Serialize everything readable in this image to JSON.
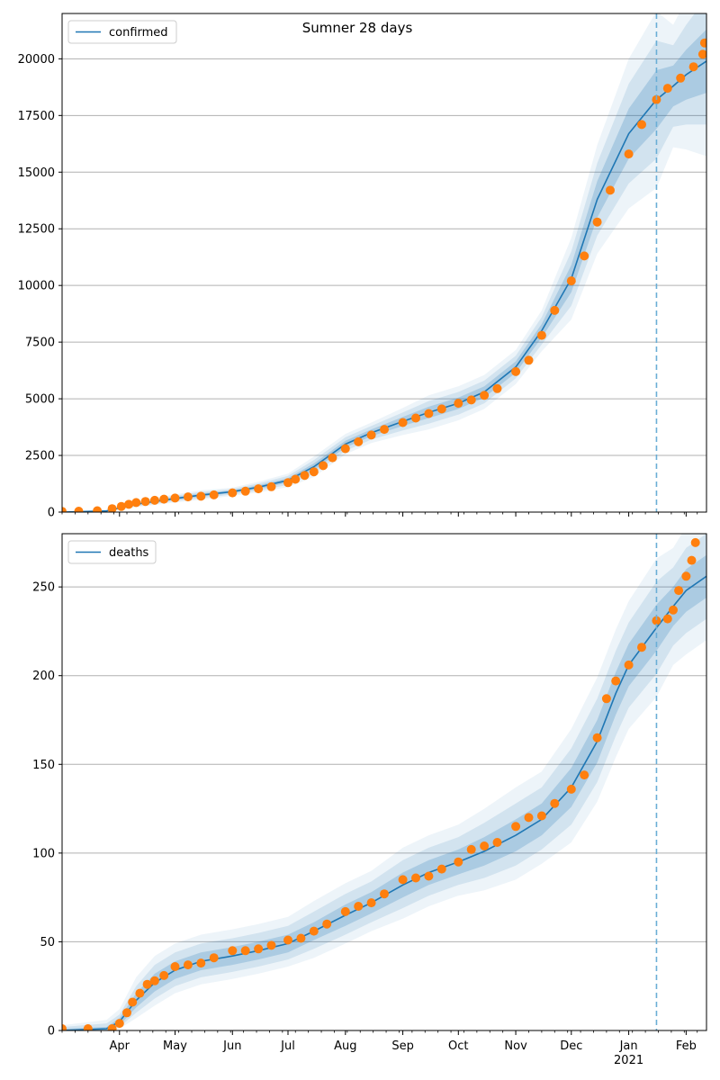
{
  "title": "Sumner 28 days",
  "colors": {
    "model": "#1f77b4",
    "observed": "#ff7f0e",
    "grid": "#b0b0b0",
    "forecast_line": "#6aaed6"
  },
  "x_axis": {
    "start": "2020-03-01",
    "end": "2021-02-12",
    "month_labels": [
      {
        "date": "2020-04-01",
        "label": "Apr"
      },
      {
        "date": "2020-05-01",
        "label": "May"
      },
      {
        "date": "2020-06-01",
        "label": "Jun"
      },
      {
        "date": "2020-07-01",
        "label": "Jul"
      },
      {
        "date": "2020-08-01",
        "label": "Aug"
      },
      {
        "date": "2020-09-01",
        "label": "Sep"
      },
      {
        "date": "2020-10-01",
        "label": "Oct"
      },
      {
        "date": "2020-11-01",
        "label": "Nov"
      },
      {
        "date": "2020-12-01",
        "label": "Dec"
      },
      {
        "date": "2021-01-01",
        "label": "Jan"
      },
      {
        "date": "2021-02-01",
        "label": "Feb"
      }
    ],
    "year_label": {
      "date": "2021-01-01",
      "label": "2021"
    },
    "forecast_start": "2021-01-16"
  },
  "chart_data": [
    {
      "type": "line",
      "legend": "confirmed",
      "legend_position": "top-left",
      "ylim": [
        0,
        22000
      ],
      "yticks": [
        0,
        2500,
        5000,
        7500,
        10000,
        12500,
        15000,
        17500,
        20000
      ],
      "grid": true,
      "model_line": {
        "x": [
          "2020-03-01",
          "2020-03-25",
          "2020-04-10",
          "2020-05-01",
          "2020-05-15",
          "2020-06-01",
          "2020-06-15",
          "2020-07-01",
          "2020-07-15",
          "2020-08-01",
          "2020-08-15",
          "2020-09-01",
          "2020-09-15",
          "2020-10-01",
          "2020-10-15",
          "2020-11-01",
          "2020-11-15",
          "2020-12-01",
          "2020-12-15",
          "2021-01-01",
          "2021-01-16",
          "2021-01-25",
          "2021-02-01",
          "2021-02-12"
        ],
        "y": [
          0,
          50,
          350,
          600,
          750,
          900,
          1100,
          1400,
          2000,
          3000,
          3500,
          4000,
          4400,
          4800,
          5300,
          6400,
          8000,
          10300,
          13800,
          16700,
          18200,
          18800,
          19300,
          19900
        ]
      },
      "observed_points": {
        "x": [
          "2020-03-01",
          "2020-03-10",
          "2020-03-20",
          "2020-03-28",
          "2020-04-02",
          "2020-04-06",
          "2020-04-10",
          "2020-04-15",
          "2020-04-20",
          "2020-04-25",
          "2020-05-01",
          "2020-05-08",
          "2020-05-15",
          "2020-05-22",
          "2020-06-01",
          "2020-06-08",
          "2020-06-15",
          "2020-06-22",
          "2020-07-01",
          "2020-07-05",
          "2020-07-10",
          "2020-07-15",
          "2020-07-20",
          "2020-07-25",
          "2020-08-01",
          "2020-08-08",
          "2020-08-15",
          "2020-08-22",
          "2020-09-01",
          "2020-09-08",
          "2020-09-15",
          "2020-09-22",
          "2020-10-01",
          "2020-10-08",
          "2020-10-15",
          "2020-10-22",
          "2020-11-01",
          "2020-11-08",
          "2020-11-15",
          "2020-11-22",
          "2020-12-01",
          "2020-12-08",
          "2020-12-15",
          "2020-12-22",
          "2021-01-01",
          "2021-01-08",
          "2021-01-16",
          "2021-01-22",
          "2021-01-29",
          "2021-02-05",
          "2021-02-10",
          "2021-02-11"
        ],
        "y": [
          30,
          40,
          60,
          150,
          250,
          340,
          420,
          470,
          520,
          570,
          620,
          670,
          700,
          760,
          850,
          920,
          1030,
          1120,
          1300,
          1450,
          1620,
          1780,
          2050,
          2400,
          2800,
          3100,
          3400,
          3650,
          3950,
          4150,
          4350,
          4550,
          4800,
          4950,
          5150,
          5450,
          6200,
          6700,
          7800,
          8900,
          10200,
          11300,
          12800,
          14200,
          15800,
          17100,
          18200,
          18700,
          19150,
          19650,
          20200,
          20700
        ]
      },
      "forecast_bands": [
        {
          "level": 1,
          "lower": [
            0,
            40,
            300,
            540,
            680,
            840,
            1020,
            1300,
            1850,
            2850,
            3350,
            3800,
            4150,
            4550,
            5050,
            6150,
            7700,
            9700,
            13000,
            15600,
            16900,
            17900,
            18200,
            18500
          ],
          "upper": [
            0,
            60,
            400,
            660,
            820,
            960,
            1180,
            1500,
            2150,
            3150,
            3650,
            4200,
            4650,
            5050,
            5550,
            6650,
            8300,
            10900,
            14600,
            17800,
            19500,
            19700,
            20400,
            21300
          ]
        },
        {
          "level": 2,
          "lower": [
            0,
            30,
            260,
            480,
            610,
            780,
            940,
            1200,
            1700,
            2700,
            3200,
            3600,
            3900,
            4300,
            4800,
            5900,
            7400,
            9100,
            12200,
            14500,
            15600,
            17000,
            17100,
            17100
          ],
          "upper": [
            0,
            80,
            450,
            720,
            890,
            1020,
            1260,
            1600,
            2300,
            3300,
            3800,
            4400,
            4900,
            5300,
            5800,
            6900,
            8600,
            11500,
            15400,
            18900,
            20800,
            20600,
            21500,
            22700
          ]
        },
        {
          "level": 3,
          "lower": [
            0,
            20,
            220,
            420,
            540,
            720,
            860,
            1100,
            1550,
            2550,
            3050,
            3400,
            3650,
            4050,
            4550,
            5650,
            7100,
            8500,
            11400,
            13400,
            14300,
            16100,
            16000,
            15700
          ],
          "upper": [
            0,
            110,
            500,
            780,
            960,
            1080,
            1340,
            1700,
            2450,
            3450,
            3950,
            4600,
            5150,
            5550,
            6050,
            7150,
            8900,
            12100,
            16200,
            20000,
            22100,
            21500,
            22600,
            24100
          ]
        }
      ]
    },
    {
      "type": "line",
      "legend": "deaths",
      "legend_position": "top-left",
      "ylim": [
        0,
        280
      ],
      "yticks": [
        0,
        50,
        100,
        150,
        200,
        250
      ],
      "grid": true,
      "model_line": {
        "x": [
          "2020-03-01",
          "2020-03-25",
          "2020-04-01",
          "2020-04-10",
          "2020-04-20",
          "2020-05-01",
          "2020-05-15",
          "2020-06-01",
          "2020-06-15",
          "2020-07-01",
          "2020-07-15",
          "2020-08-01",
          "2020-08-15",
          "2020-09-01",
          "2020-09-15",
          "2020-10-01",
          "2020-10-15",
          "2020-11-01",
          "2020-11-15",
          "2020-12-01",
          "2020-12-15",
          "2020-12-25",
          "2021-01-01",
          "2021-01-16",
          "2021-01-25",
          "2021-02-01",
          "2021-02-12"
        ],
        "y": [
          0,
          1,
          5,
          17,
          27,
          34,
          39,
          42,
          45,
          49,
          56,
          65,
          72,
          82,
          89,
          95,
          101,
          110,
          119,
          137,
          163,
          190,
          206,
          227,
          239,
          248,
          256
        ]
      },
      "observed_points": {
        "x": [
          "2020-03-01",
          "2020-03-15",
          "2020-03-28",
          "2020-04-01",
          "2020-04-05",
          "2020-04-08",
          "2020-04-12",
          "2020-04-16",
          "2020-04-20",
          "2020-04-25",
          "2020-05-01",
          "2020-05-08",
          "2020-05-15",
          "2020-05-22",
          "2020-06-01",
          "2020-06-08",
          "2020-06-15",
          "2020-06-22",
          "2020-07-01",
          "2020-07-08",
          "2020-07-15",
          "2020-07-22",
          "2020-08-01",
          "2020-08-08",
          "2020-08-15",
          "2020-08-22",
          "2020-09-01",
          "2020-09-08",
          "2020-09-15",
          "2020-09-22",
          "2020-10-01",
          "2020-10-08",
          "2020-10-15",
          "2020-10-22",
          "2020-11-01",
          "2020-11-08",
          "2020-11-15",
          "2020-11-22",
          "2020-12-01",
          "2020-12-08",
          "2020-12-15",
          "2020-12-20",
          "2020-12-25",
          "2021-01-01",
          "2021-01-08",
          "2021-01-16",
          "2021-01-22",
          "2021-01-25",
          "2021-01-28",
          "2021-02-01",
          "2021-02-04",
          "2021-02-06"
        ],
        "y": [
          1,
          1,
          1,
          4,
          10,
          16,
          21,
          26,
          28,
          31,
          36,
          37,
          38,
          41,
          45,
          45,
          46,
          48,
          51,
          52,
          56,
          60,
          67,
          70,
          72,
          77,
          85,
          86,
          87,
          91,
          95,
          102,
          104,
          106,
          115,
          120,
          121,
          128,
          136,
          144,
          165,
          187,
          197,
          206,
          216,
          231,
          232,
          237,
          248,
          256,
          265,
          275
        ]
      },
      "forecast_bands": [
        {
          "level": 1,
          "lower": [
            0,
            0,
            3,
            13,
            22,
            29,
            34,
            37,
            40,
            44,
            51,
            59,
            66,
            75,
            82,
            88,
            93,
            101,
            110,
            126,
            151,
            178,
            194,
            214,
            228,
            236,
            244
          ],
          "upper": [
            1,
            2,
            7,
            21,
            32,
            39,
            44,
            47,
            50,
            54,
            61,
            71,
            78,
            89,
            96,
            102,
            109,
            119,
            128,
            148,
            175,
            202,
            218,
            240,
            250,
            260,
            268
          ]
        },
        {
          "level": 2,
          "lower": [
            0,
            0,
            2,
            10,
            18,
            25,
            30,
            33,
            36,
            40,
            46,
            54,
            61,
            69,
            76,
            82,
            86,
            93,
            102,
            116,
            140,
            166,
            182,
            201,
            217,
            224,
            232
          ],
          "upper": [
            2,
            4,
            9,
            25,
            37,
            44,
            49,
            52,
            55,
            59,
            67,
            77,
            84,
            96,
            103,
            109,
            117,
            128,
            137,
            159,
            187,
            214,
            230,
            253,
            261,
            272,
            280
          ]
        },
        {
          "level": 3,
          "lower": [
            0,
            0,
            1,
            7,
            14,
            21,
            26,
            29,
            32,
            36,
            41,
            49,
            56,
            63,
            70,
            76,
            79,
            85,
            94,
            106,
            129,
            154,
            170,
            188,
            206,
            212,
            220
          ],
          "upper": [
            3,
            6,
            12,
            30,
            42,
            49,
            54,
            57,
            60,
            64,
            73,
            83,
            90,
            103,
            110,
            116,
            125,
            137,
            146,
            170,
            199,
            226,
            242,
            266,
            272,
            284,
            292
          ]
        }
      ]
    }
  ]
}
